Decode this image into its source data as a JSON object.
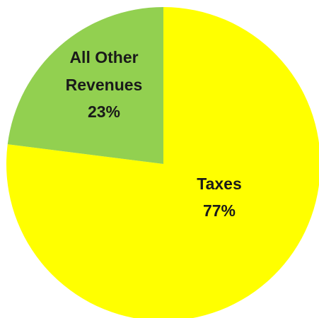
{
  "chart_data": {
    "type": "pie",
    "title": "",
    "slices": [
      {
        "label": "Taxes",
        "value": 77,
        "value_label": "77%",
        "color": "#FFFF00"
      },
      {
        "label": "All Other Revenues",
        "label_lines": [
          "All Other",
          "Revenues"
        ],
        "value": 23,
        "value_label": "23%",
        "color": "#92D050"
      }
    ],
    "start_angle_deg": 0,
    "direction": "clockwise",
    "legend": "none"
  }
}
